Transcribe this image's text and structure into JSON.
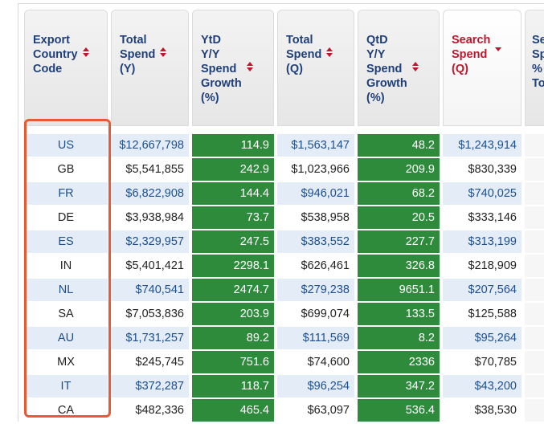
{
  "colors": {
    "accent_red": "#c0152b",
    "header_blue": "#1f3f7a",
    "growth_green": "#2e8b3c",
    "highlight": "#e85a33"
  },
  "headers": [
    {
      "label": "Export\nCountry\nCode",
      "sort": "both"
    },
    {
      "label": "Total\nSpend\n(Y)",
      "sort": "both"
    },
    {
      "label": "YtD\nY/Y\nSpend\nGrowth\n(%)",
      "sort": "both"
    },
    {
      "label": "Total\nSpend\n(Q)",
      "sort": "both"
    },
    {
      "label": "QtD\nY/Y\nSpend\nGrowth\n(%)",
      "sort": "both"
    },
    {
      "label": "Search\nSpend\n(Q)",
      "sort": "desc"
    },
    {
      "label": "Sea\nSpe\n% o\nTota",
      "sort": "none"
    }
  ],
  "rows": [
    {
      "code": "US",
      "total_y": "$12,667,798",
      "ytd_growth": "114.9",
      "total_q": "$1,563,147",
      "qtd_growth": "48.2",
      "search_q": "$1,243,914"
    },
    {
      "code": "GB",
      "total_y": "$5,541,855",
      "ytd_growth": "242.9",
      "total_q": "$1,023,966",
      "qtd_growth": "209.9",
      "search_q": "$830,339"
    },
    {
      "code": "FR",
      "total_y": "$6,822,908",
      "ytd_growth": "144.4",
      "total_q": "$946,021",
      "qtd_growth": "68.2",
      "search_q": "$740,025"
    },
    {
      "code": "DE",
      "total_y": "$3,938,984",
      "ytd_growth": "73.7",
      "total_q": "$538,958",
      "qtd_growth": "20.5",
      "search_q": "$333,146"
    },
    {
      "code": "ES",
      "total_y": "$2,329,957",
      "ytd_growth": "247.5",
      "total_q": "$383,552",
      "qtd_growth": "227.7",
      "search_q": "$313,199"
    },
    {
      "code": "IN",
      "total_y": "$5,401,421",
      "ytd_growth": "2298.1",
      "total_q": "$626,461",
      "qtd_growth": "326.8",
      "search_q": "$218,909"
    },
    {
      "code": "NL",
      "total_y": "$740,541",
      "ytd_growth": "2474.7",
      "total_q": "$279,238",
      "qtd_growth": "9651.1",
      "search_q": "$207,564"
    },
    {
      "code": "SA",
      "total_y": "$7,053,836",
      "ytd_growth": "203.9",
      "total_q": "$699,074",
      "qtd_growth": "133.5",
      "search_q": "$125,588"
    },
    {
      "code": "AU",
      "total_y": "$1,731,257",
      "ytd_growth": "89.2",
      "total_q": "$111,569",
      "qtd_growth": "8.2",
      "search_q": "$95,264"
    },
    {
      "code": "MX",
      "total_y": "$245,745",
      "ytd_growth": "751.6",
      "total_q": "$74,600",
      "qtd_growth": "2336",
      "search_q": "$70,785"
    },
    {
      "code": "IT",
      "total_y": "$372,287",
      "ytd_growth": "118.7",
      "total_q": "$96,254",
      "qtd_growth": "347.2",
      "search_q": "$43,200"
    },
    {
      "code": "CA",
      "total_y": "$482,336",
      "ytd_growth": "465.4",
      "total_q": "$63,097",
      "qtd_growth": "536.4",
      "search_q": "$38,530"
    }
  ]
}
